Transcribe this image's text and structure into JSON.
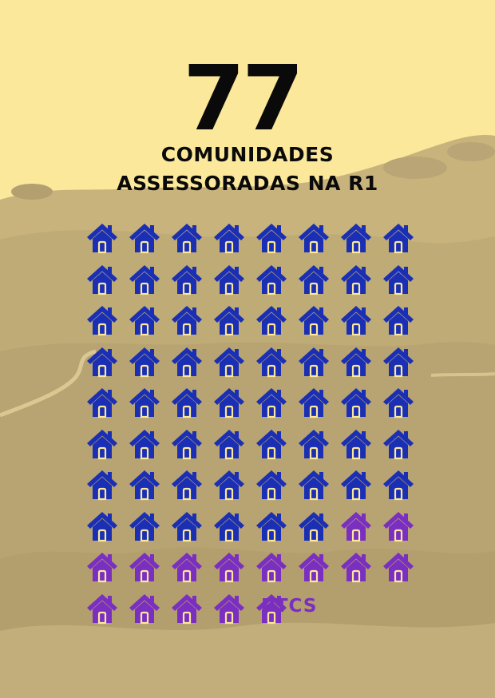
{
  "headline": {
    "number": "77",
    "line1": "COMUNIDADES",
    "line2": "ASSESSORADAS NA R1"
  },
  "pictogram": {
    "icon": "house-icon",
    "columns": 8,
    "groups": [
      {
        "count": 62,
        "color": "#1a2fb4"
      },
      {
        "count": 15,
        "color": "#7a2fc0",
        "label": "PTCS"
      }
    ]
  },
  "colors": {
    "sky": "#fbe89b",
    "landscape": "#c4b07d",
    "text": "#0a0a0a"
  }
}
